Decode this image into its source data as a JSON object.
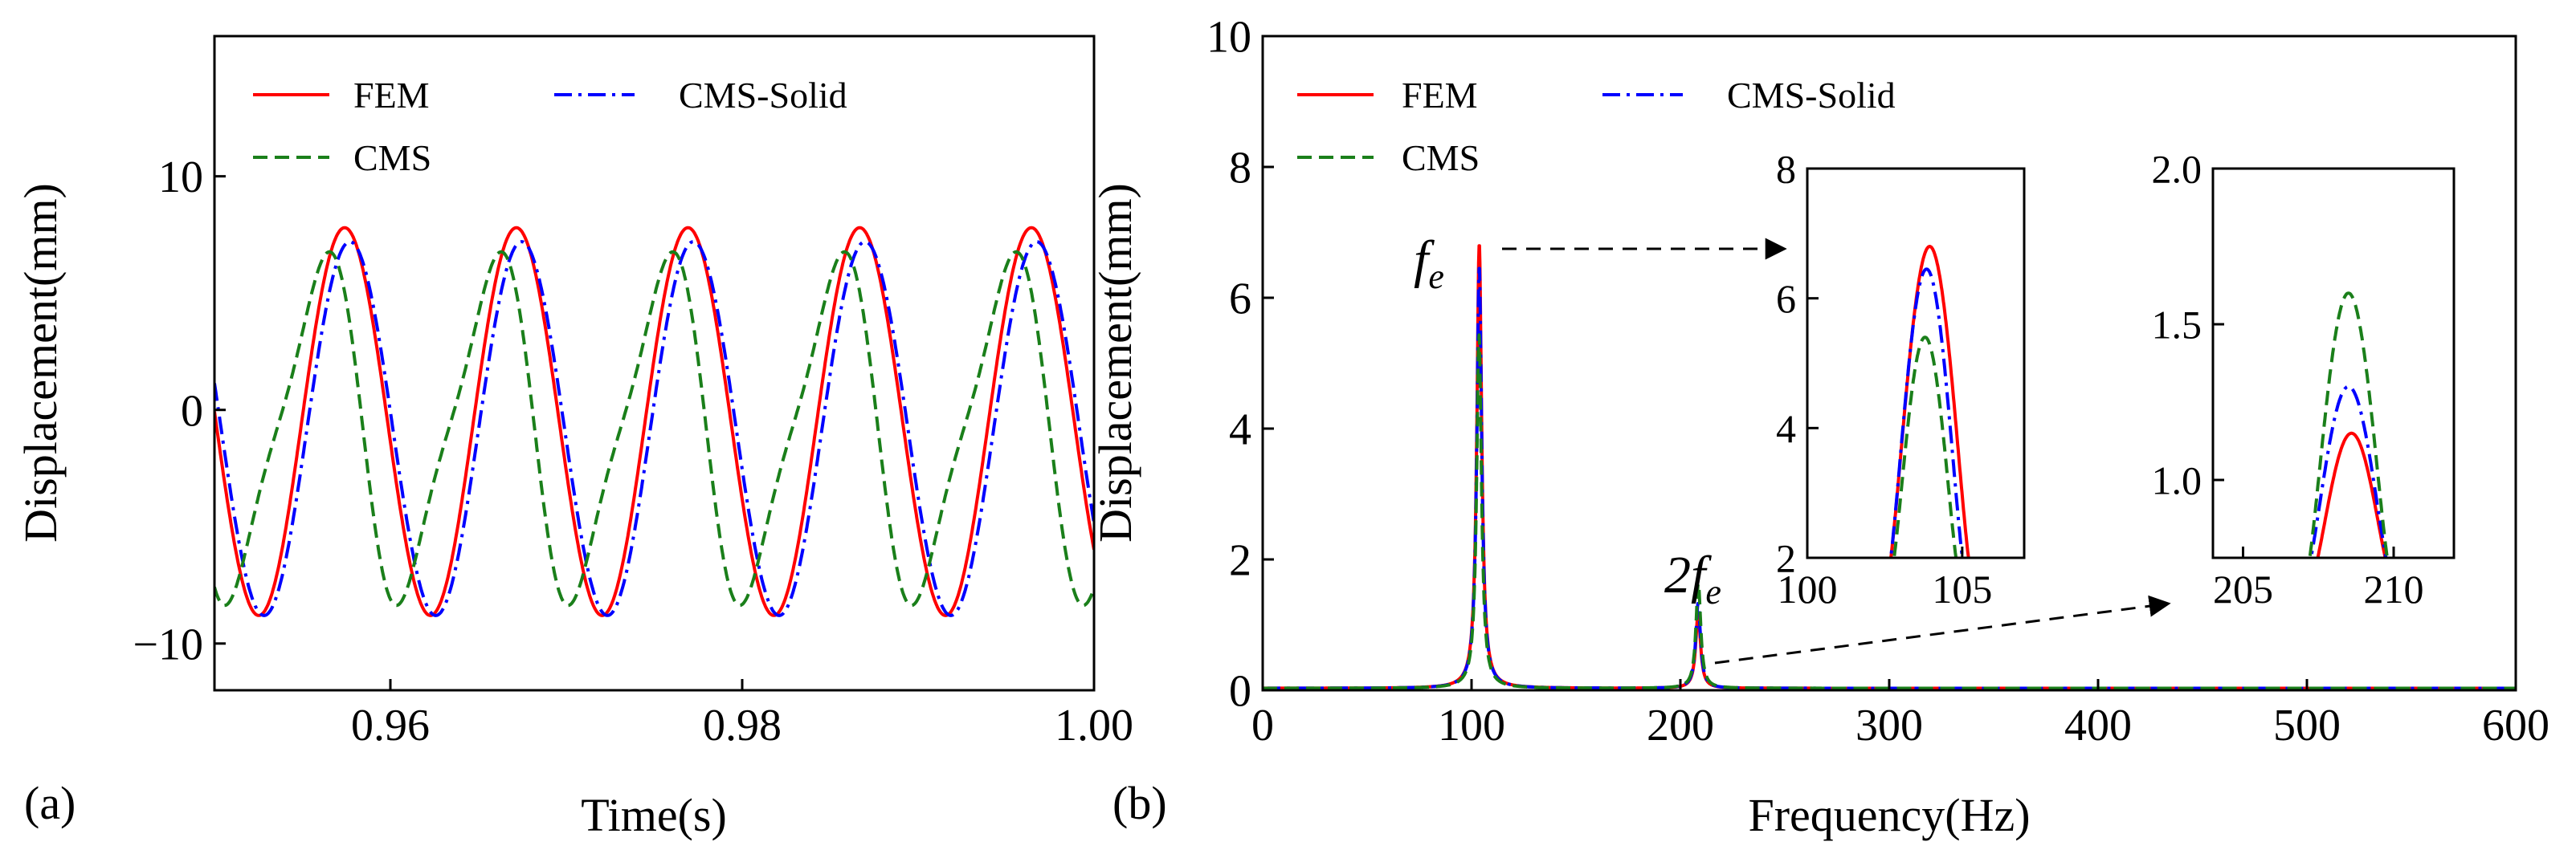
{
  "colors": {
    "fem": "#ff0000",
    "cms": "#1a7f1a",
    "cms_solid": "#0000ff",
    "axis": "#000000"
  },
  "legend": {
    "fem": "FEM",
    "cms": "CMS",
    "cms_solid": "CMS-Solid"
  },
  "chart_data": [
    {
      "id": "a",
      "type": "line",
      "panel_label": "(a)",
      "xlabel": "Time(s)",
      "ylabel": "Displacement(mm)",
      "xlim": [
        0.95,
        1.0
      ],
      "ylim": [
        -12,
        16
      ],
      "xticks": [
        0.96,
        0.98,
        1.0
      ],
      "xtick_labels": [
        "0.96",
        "0.98",
        "1.00"
      ],
      "yticks": [
        -10,
        0,
        10
      ],
      "ytick_labels": [
        "−10",
        "0",
        "10"
      ],
      "legend_position": "top-left",
      "period_s": 0.00976,
      "series": [
        {
          "name": "FEM",
          "key": "fem",
          "style": "solid",
          "amplitude": 8.3,
          "offset": -0.5,
          "peak_time": 0.9574,
          "harmonic2_ratio": 0
        },
        {
          "name": "CMS-Solid",
          "key": "cms_solid",
          "style": "dashdot",
          "amplitude": 8.0,
          "offset": -0.8,
          "peak_time": 0.9577,
          "harmonic2_ratio": 0
        },
        {
          "name": "CMS",
          "key": "cms",
          "style": "dashed",
          "amplitude": 7.0,
          "offset": -0.8,
          "peak_time": 0.956,
          "harmonic2_ratio": 0.22
        }
      ]
    },
    {
      "id": "b",
      "type": "line",
      "panel_label": "(b)",
      "xlabel": "Frequency(Hz)",
      "ylabel": "Displacement(mm)",
      "xlim": [
        0,
        600
      ],
      "ylim": [
        0,
        10
      ],
      "xticks": [
        0,
        100,
        200,
        300,
        400,
        500,
        600
      ],
      "xtick_labels": [
        "0",
        "100",
        "200",
        "300",
        "400",
        "500",
        "600"
      ],
      "yticks": [
        0,
        2,
        4,
        6,
        8,
        10
      ],
      "ytick_labels": [
        "0",
        "2",
        "4",
        "6",
        "8",
        "10"
      ],
      "legend_position": "top-left",
      "annotations": {
        "fe": {
          "main": "f",
          "sub": "e",
          "x": 104,
          "y": 6.8
        },
        "two_fe": {
          "main": "2f",
          "sub": "e",
          "x": 208,
          "y": 1.6
        }
      },
      "series": [
        {
          "name": "FEM",
          "key": "fem",
          "style": "solid",
          "peaks": [
            {
              "f": 103.7,
              "y": 6.8
            },
            {
              "f": 208.5,
              "y": 1.15
            }
          ]
        },
        {
          "name": "CMS-Solid",
          "key": "cms_solid",
          "style": "dashdot",
          "peaks": [
            {
              "f": 103.7,
              "y": 6.45
            },
            {
              "f": 208.5,
              "y": 1.3
            }
          ]
        },
        {
          "name": "CMS",
          "key": "cms",
          "style": "dashed",
          "peaks": [
            {
              "f": 103.6,
              "y": 5.4
            },
            {
              "f": 208.6,
              "y": 1.6
            }
          ]
        }
      ],
      "insets": [
        {
          "id": "inset1",
          "xlim": [
            100,
            107
          ],
          "ylim": [
            2,
            8
          ],
          "xticks": [
            100,
            105
          ],
          "xtick_labels": [
            "100",
            "105"
          ],
          "yticks": [
            2,
            4,
            6,
            8
          ],
          "ytick_labels": [
            "2",
            "4",
            "6",
            "8"
          ],
          "series": [
            {
              "key": "fem",
              "center": 103.75,
              "peak": 6.8,
              "base_left": 102.6,
              "base_right": 105.3
            },
            {
              "key": "cms_solid",
              "center": 103.7,
              "peak": 6.45,
              "base_left": 102.6,
              "base_right": 105.1
            },
            {
              "key": "cms",
              "center": 103.6,
              "peak": 5.4,
              "base_left": 102.7,
              "base_right": 104.9
            }
          ]
        },
        {
          "id": "inset2",
          "xlim": [
            204,
            212
          ],
          "ylim": [
            0.75,
            2.0
          ],
          "xticks": [
            205,
            210
          ],
          "xtick_labels": [
            "205",
            "210"
          ],
          "yticks": [
            1.0,
            1.5,
            2.0
          ],
          "ytick_labels": [
            "1.0",
            "1.5",
            "2.0"
          ],
          "series": [
            {
              "key": "fem",
              "center": 208.5,
              "peak": 1.15,
              "base_left": 207.3,
              "base_right": 209.9
            },
            {
              "key": "cms_solid",
              "center": 208.5,
              "peak": 1.3,
              "base_left": 207.1,
              "base_right": 209.9
            },
            {
              "key": "cms",
              "center": 208.6,
              "peak": 1.6,
              "base_left": 207.1,
              "base_right": 209.9
            }
          ]
        }
      ]
    }
  ]
}
